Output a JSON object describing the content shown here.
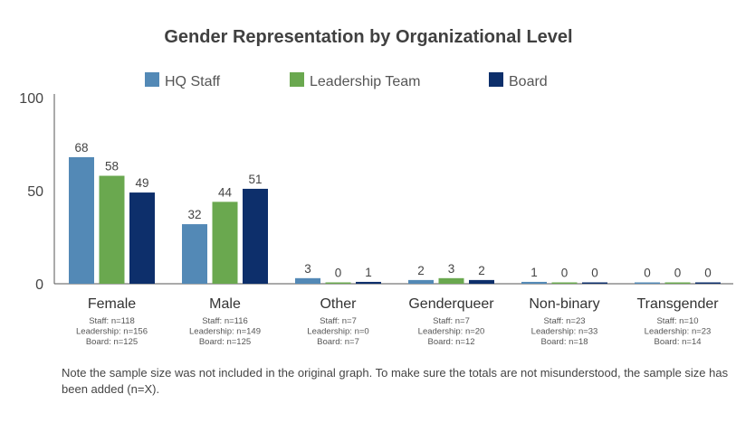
{
  "chart_data": {
    "type": "bar",
    "title": "Gender Representation by Organizational Level",
    "categories": [
      "Female",
      "Male",
      "Other",
      "Genderqueer",
      "Non-binary",
      "Transgender"
    ],
    "series": [
      {
        "name": "HQ Staff",
        "color": "#5389B6",
        "values": [
          68,
          32,
          3,
          2,
          1,
          0
        ]
      },
      {
        "name": "Leadership Team",
        "color": "#6AA84F",
        "values": [
          58,
          44,
          0,
          3,
          0,
          0
        ]
      },
      {
        "name": "Board",
        "color": "#0D2F6B",
        "values": [
          49,
          51,
          1,
          2,
          0,
          0
        ]
      }
    ],
    "yticks": [
      "0",
      "50",
      "100"
    ],
    "ylim": [
      0,
      100
    ],
    "legend_position": "top",
    "grid": false,
    "sample_sizes": [
      [
        "Staff: n=118",
        "Leadership: n=156",
        "Board: n=125"
      ],
      [
        "Staff: n=116",
        "Leadership: n=149",
        "Board: n=125"
      ],
      [
        "Staff: n=7",
        "Leadership: n=0",
        "Board: n=7"
      ],
      [
        "Staff: n=7",
        "Leadership: n=20",
        "Board: n=12"
      ],
      [
        "Staff: n=23",
        "Leadership: n=33",
        "Board: n=18"
      ],
      [
        "Staff: n=10",
        "Leadership: n=23",
        "Board: n=14"
      ]
    ]
  },
  "note": "Note the sample size was not included in the original graph. To make sure the totals are not misunderstood, the sample size has been added (n=X)."
}
